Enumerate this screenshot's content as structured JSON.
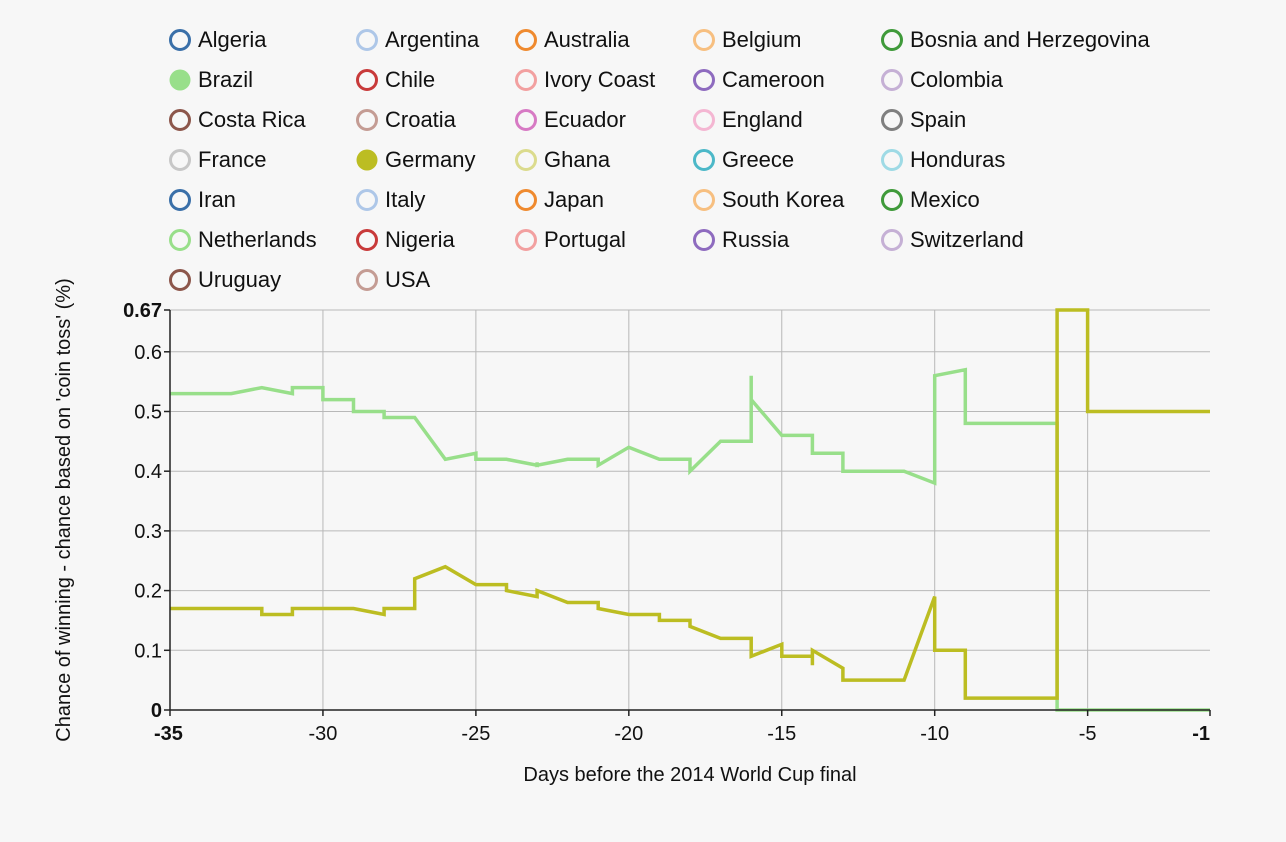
{
  "chart_data": {
    "type": "line",
    "xlabel": "Days before the 2014 World Cup final",
    "ylabel": "Chance of winning - chance based on 'coin toss' (%)",
    "xlim": [
      -35,
      -1
    ],
    "ylim": [
      0,
      0.67
    ],
    "x_ticks": [
      -35,
      -30,
      -25,
      -20,
      -15,
      -10,
      -5,
      -1
    ],
    "y_ticks": [
      0,
      0.1,
      0.2,
      0.3,
      0.4,
      0.5,
      0.6,
      0.67
    ],
    "grid": true,
    "legend_position": "top",
    "legend": [
      {
        "name": "Algeria",
        "color": "#3a6fa8",
        "active": false
      },
      {
        "name": "Argentina",
        "color": "#aec7e8",
        "active": false
      },
      {
        "name": "Australia",
        "color": "#ef8a2f",
        "active": false
      },
      {
        "name": "Belgium",
        "color": "#f7bf80",
        "active": false
      },
      {
        "name": "Bosnia and Herzegovina",
        "color": "#3f9a3a",
        "active": false
      },
      {
        "name": "Brazil",
        "color": "#98df8a",
        "active": true
      },
      {
        "name": "Chile",
        "color": "#c83a3a",
        "active": false
      },
      {
        "name": "Ivory Coast",
        "color": "#f2a0a0",
        "active": false
      },
      {
        "name": "Cameroon",
        "color": "#8e6bbf",
        "active": false
      },
      {
        "name": "Colombia",
        "color": "#c5b0d5",
        "active": false
      },
      {
        "name": "Costa Rica",
        "color": "#8c564b",
        "active": false
      },
      {
        "name": "Croatia",
        "color": "#c49c94",
        "active": false
      },
      {
        "name": "Ecuador",
        "color": "#d77ac4",
        "active": false
      },
      {
        "name": "England",
        "color": "#f4b6d2",
        "active": false
      },
      {
        "name": "Spain",
        "color": "#7f7f7f",
        "active": false
      },
      {
        "name": "France",
        "color": "#c7c7c7",
        "active": false
      },
      {
        "name": "Germany",
        "color": "#bcbd22",
        "active": true
      },
      {
        "name": "Ghana",
        "color": "#dbdb8d",
        "active": false
      },
      {
        "name": "Greece",
        "color": "#4cb8c8",
        "active": false
      },
      {
        "name": "Honduras",
        "color": "#9edae5",
        "active": false
      },
      {
        "name": "Iran",
        "color": "#3a6fa8",
        "active": false
      },
      {
        "name": "Italy",
        "color": "#aec7e8",
        "active": false
      },
      {
        "name": "Japan",
        "color": "#ef8a2f",
        "active": false
      },
      {
        "name": "South Korea",
        "color": "#f7bf80",
        "active": false
      },
      {
        "name": "Mexico",
        "color": "#3f9a3a",
        "active": false
      },
      {
        "name": "Netherlands",
        "color": "#98df8a",
        "active": false
      },
      {
        "name": "Nigeria",
        "color": "#c83a3a",
        "active": false
      },
      {
        "name": "Portugal",
        "color": "#f2a0a0",
        "active": false
      },
      {
        "name": "Russia",
        "color": "#8e6bbf",
        "active": false
      },
      {
        "name": "Switzerland",
        "color": "#c5b0d5",
        "active": false
      },
      {
        "name": "Uruguay",
        "color": "#8c564b",
        "active": false
      },
      {
        "name": "USA",
        "color": "#c49c94",
        "active": false
      }
    ],
    "series": [
      {
        "name": "Brazil",
        "color": "#98df8a",
        "points": [
          [
            -35,
            0.53
          ],
          [
            -33,
            0.53
          ],
          [
            -32,
            0.54
          ],
          [
            -31,
            0.53
          ],
          [
            -31,
            0.54
          ],
          [
            -30,
            0.54
          ],
          [
            -30,
            0.52
          ],
          [
            -29,
            0.52
          ],
          [
            -29,
            0.5
          ],
          [
            -28,
            0.5
          ],
          [
            -28,
            0.49
          ],
          [
            -27,
            0.49
          ],
          [
            -26,
            0.42
          ],
          [
            -25,
            0.43
          ],
          [
            -25,
            0.42
          ],
          [
            -24,
            0.42
          ],
          [
            -23,
            0.41
          ],
          [
            -23,
            0.415
          ],
          [
            -23,
            0.41
          ],
          [
            -22,
            0.42
          ],
          [
            -21,
            0.42
          ],
          [
            -21,
            0.41
          ],
          [
            -20,
            0.44
          ],
          [
            -19,
            0.42
          ],
          [
            -18,
            0.42
          ],
          [
            -18,
            0.4
          ],
          [
            -17,
            0.45
          ],
          [
            -16,
            0.45
          ],
          [
            -16,
            0.56
          ],
          [
            -16,
            0.52
          ],
          [
            -15,
            0.46
          ],
          [
            -14,
            0.46
          ],
          [
            -14,
            0.43
          ],
          [
            -13,
            0.43
          ],
          [
            -13,
            0.4
          ],
          [
            -11,
            0.4
          ],
          [
            -10,
            0.38
          ],
          [
            -10,
            0.56
          ],
          [
            -9,
            0.57
          ],
          [
            -9,
            0.48
          ],
          [
            -6,
            0.48
          ],
          [
            -6,
            0.0
          ],
          [
            -1,
            0.0
          ]
        ]
      },
      {
        "name": "Germany",
        "color": "#bcbd22",
        "points": [
          [
            -35,
            0.17
          ],
          [
            -32,
            0.17
          ],
          [
            -32,
            0.16
          ],
          [
            -31,
            0.16
          ],
          [
            -31,
            0.17
          ],
          [
            -29,
            0.17
          ],
          [
            -28,
            0.16
          ],
          [
            -28,
            0.17
          ],
          [
            -27,
            0.17
          ],
          [
            -27,
            0.22
          ],
          [
            -26,
            0.24
          ],
          [
            -25,
            0.21
          ],
          [
            -24,
            0.21
          ],
          [
            -24,
            0.2
          ],
          [
            -23,
            0.19
          ],
          [
            -23,
            0.2
          ],
          [
            -22,
            0.18
          ],
          [
            -21,
            0.18
          ],
          [
            -21,
            0.17
          ],
          [
            -20,
            0.16
          ],
          [
            -19,
            0.16
          ],
          [
            -19,
            0.15
          ],
          [
            -18,
            0.15
          ],
          [
            -18,
            0.14
          ],
          [
            -17,
            0.12
          ],
          [
            -16,
            0.12
          ],
          [
            -16,
            0.09
          ],
          [
            -15,
            0.11
          ],
          [
            -15,
            0.09
          ],
          [
            -14,
            0.09
          ],
          [
            -14,
            0.075
          ],
          [
            -14,
            0.1
          ],
          [
            -13,
            0.07
          ],
          [
            -13,
            0.05
          ],
          [
            -11,
            0.05
          ],
          [
            -10,
            0.19
          ],
          [
            -10,
            0.1
          ],
          [
            -9,
            0.1
          ],
          [
            -9,
            0.02
          ],
          [
            -6,
            0.02
          ],
          [
            -6,
            0.67
          ],
          [
            -5,
            0.67
          ],
          [
            -5,
            0.5
          ],
          [
            -1,
            0.5
          ]
        ]
      }
    ]
  }
}
